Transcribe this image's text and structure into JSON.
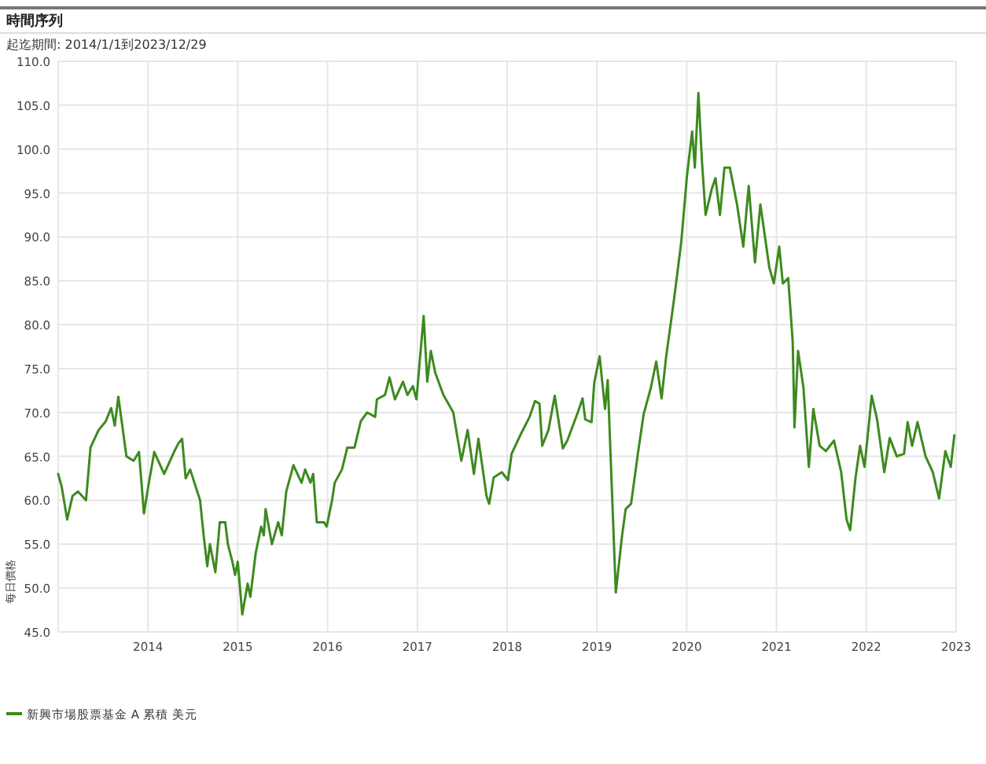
{
  "chart_data": {
    "type": "line",
    "title": "時間序列",
    "subtitle": "起迄期間: 2014/1/1到2023/12/29",
    "ylabel": "每日價格",
    "xlim": [
      2013,
      2023
    ],
    "xticks": [
      2014,
      2015,
      2016,
      2017,
      2018,
      2019,
      2020,
      2021,
      2022,
      2023
    ],
    "ylim": [
      45,
      110
    ],
    "yticks": [
      {
        "value": 45,
        "label": "45.0"
      },
      {
        "value": 50,
        "label": "50.0"
      },
      {
        "value": 55,
        "label": "55.0"
      },
      {
        "value": 60,
        "label": "60.0"
      },
      {
        "value": 65,
        "label": "65.0"
      },
      {
        "value": 70,
        "label": "70.0"
      },
      {
        "value": 75,
        "label": "75.0"
      },
      {
        "value": 80,
        "label": "80.0"
      },
      {
        "value": 85,
        "label": "85.0"
      },
      {
        "value": 90,
        "label": "90.0"
      },
      {
        "value": 95,
        "label": "95.0"
      },
      {
        "value": 100,
        "label": "100.0"
      },
      {
        "value": 105,
        "label": "105.0"
      },
      {
        "value": 110,
        "label": "110.0"
      }
    ],
    "grid": true,
    "legend": "bottom",
    "marker": "none",
    "line_style": "solid",
    "series": [
      {
        "name": "新興市場股票基金 A 累積 美元",
        "color": "#3d8a1f",
        "x": [
          2013.0,
          2013.04,
          2013.1,
          2013.16,
          2013.22,
          2013.31,
          2013.36,
          2013.45,
          2013.53,
          2013.59,
          2013.63,
          2013.67,
          2013.76,
          2013.84,
          2013.9,
          2013.955,
          2014.01,
          2014.07,
          2014.18,
          2014.29,
          2014.34,
          2014.38,
          2014.42,
          2014.47,
          2014.58,
          2014.62,
          2014.66,
          2014.69,
          2014.75,
          2014.8,
          2014.86,
          2014.89,
          2014.94,
          2014.97,
          2015.0,
          2015.05,
          2015.11,
          2015.14,
          2015.2,
          2015.26,
          2015.29,
          2015.31,
          2015.38,
          2015.45,
          2015.49,
          2015.54,
          2015.62,
          2015.71,
          2015.75,
          2015.81,
          2015.84,
          2015.88,
          2015.96,
          2015.99,
          2016.05,
          2016.08,
          2016.16,
          2016.22,
          2016.3,
          2016.37,
          2016.44,
          2016.53,
          2016.55,
          2016.64,
          2016.69,
          2016.75,
          2016.84,
          2016.89,
          2016.95,
          2016.99,
          2017.07,
          2017.11,
          2017.15,
          2017.2,
          2017.29,
          2017.4,
          2017.49,
          2017.56,
          2017.63,
          2017.68,
          2017.77,
          2017.8,
          2017.85,
          2017.94,
          2018.01,
          2018.05,
          2018.16,
          2018.25,
          2018.31,
          2018.36,
          2018.39,
          2018.46,
          2018.53,
          2018.62,
          2018.67,
          2018.79,
          2018.84,
          2018.87,
          2018.94,
          2018.97,
          2019.03,
          2019.09,
          2019.12,
          2019.21,
          2019.28,
          2019.32,
          2019.38,
          2019.46,
          2019.52,
          2019.6,
          2019.66,
          2019.72,
          2019.77,
          2019.86,
          2019.94,
          2020.0,
          2020.06,
          2020.09,
          2020.13,
          2020.17,
          2020.21,
          2020.28,
          2020.32,
          2020.37,
          2020.42,
          2020.48,
          2020.56,
          2020.63,
          2020.69,
          2020.76,
          2020.82,
          2020.92,
          2020.97,
          2021.03,
          2021.07,
          2021.13,
          2021.18,
          2021.2,
          2021.24,
          2021.3,
          2021.36,
          2021.41,
          2021.48,
          2021.55,
          2021.64,
          2021.72,
          2021.78,
          2021.82,
          2021.88,
          2021.93,
          2021.98,
          2022.06,
          2022.12,
          2022.2,
          2022.26,
          2022.34,
          2022.42,
          2022.46,
          2022.51,
          2022.57,
          2022.66,
          2022.74,
          2022.81,
          2022.88,
          2022.94,
          2022.98
        ],
        "values": [
          63,
          61.5,
          57.8,
          60.5,
          61,
          60,
          66,
          68,
          69,
          70.5,
          68.5,
          71.8,
          65,
          64.5,
          65.5,
          58.5,
          62,
          65.5,
          63,
          65.5,
          66.5,
          67,
          62.5,
          63.5,
          60,
          56,
          52.5,
          55,
          51.8,
          57.5,
          57.5,
          55,
          53,
          51.5,
          53,
          47,
          50.5,
          49,
          54,
          57,
          56,
          59,
          55,
          57.5,
          56,
          61,
          64,
          62,
          63.5,
          62,
          63,
          57.5,
          57.5,
          57,
          60,
          62,
          63.5,
          66,
          66,
          69,
          70,
          69.5,
          71.5,
          72,
          74,
          71.5,
          73.5,
          72,
          73,
          71.5,
          81,
          73.5,
          77,
          74.5,
          72,
          70,
          64.5,
          68,
          63,
          67,
          60.5,
          59.6,
          62.6,
          63.2,
          62.3,
          65.3,
          67.7,
          69.5,
          71.3,
          71,
          66.2,
          68,
          71.9,
          65.9,
          66.8,
          70.1,
          71.6,
          69.2,
          68.9,
          73.4,
          76.4,
          70.4,
          73.7,
          49.5,
          56,
          59,
          59.6,
          65.6,
          69.8,
          72.8,
          75.8,
          71.6,
          76.3,
          83,
          89.5,
          96.7,
          102,
          97.9,
          106.4,
          98.5,
          92.5,
          95.5,
          96.7,
          92.5,
          97.9,
          97.9,
          93.7,
          88.9,
          95.8,
          87.1,
          93.7,
          86.5,
          84.7,
          88.9,
          84.7,
          85.3,
          78.1,
          68.3,
          77,
          72.8,
          63.8,
          70.4,
          66.2,
          65.6,
          66.8,
          63.2,
          57.8,
          56.6,
          62.6,
          66.2,
          63.8,
          71.9,
          69.2,
          63.2,
          67.1,
          65,
          65.3,
          68.9,
          66.2,
          68.9,
          65,
          63.2,
          60.2,
          65.6,
          63.8,
          67.4
        ]
      }
    ]
  }
}
